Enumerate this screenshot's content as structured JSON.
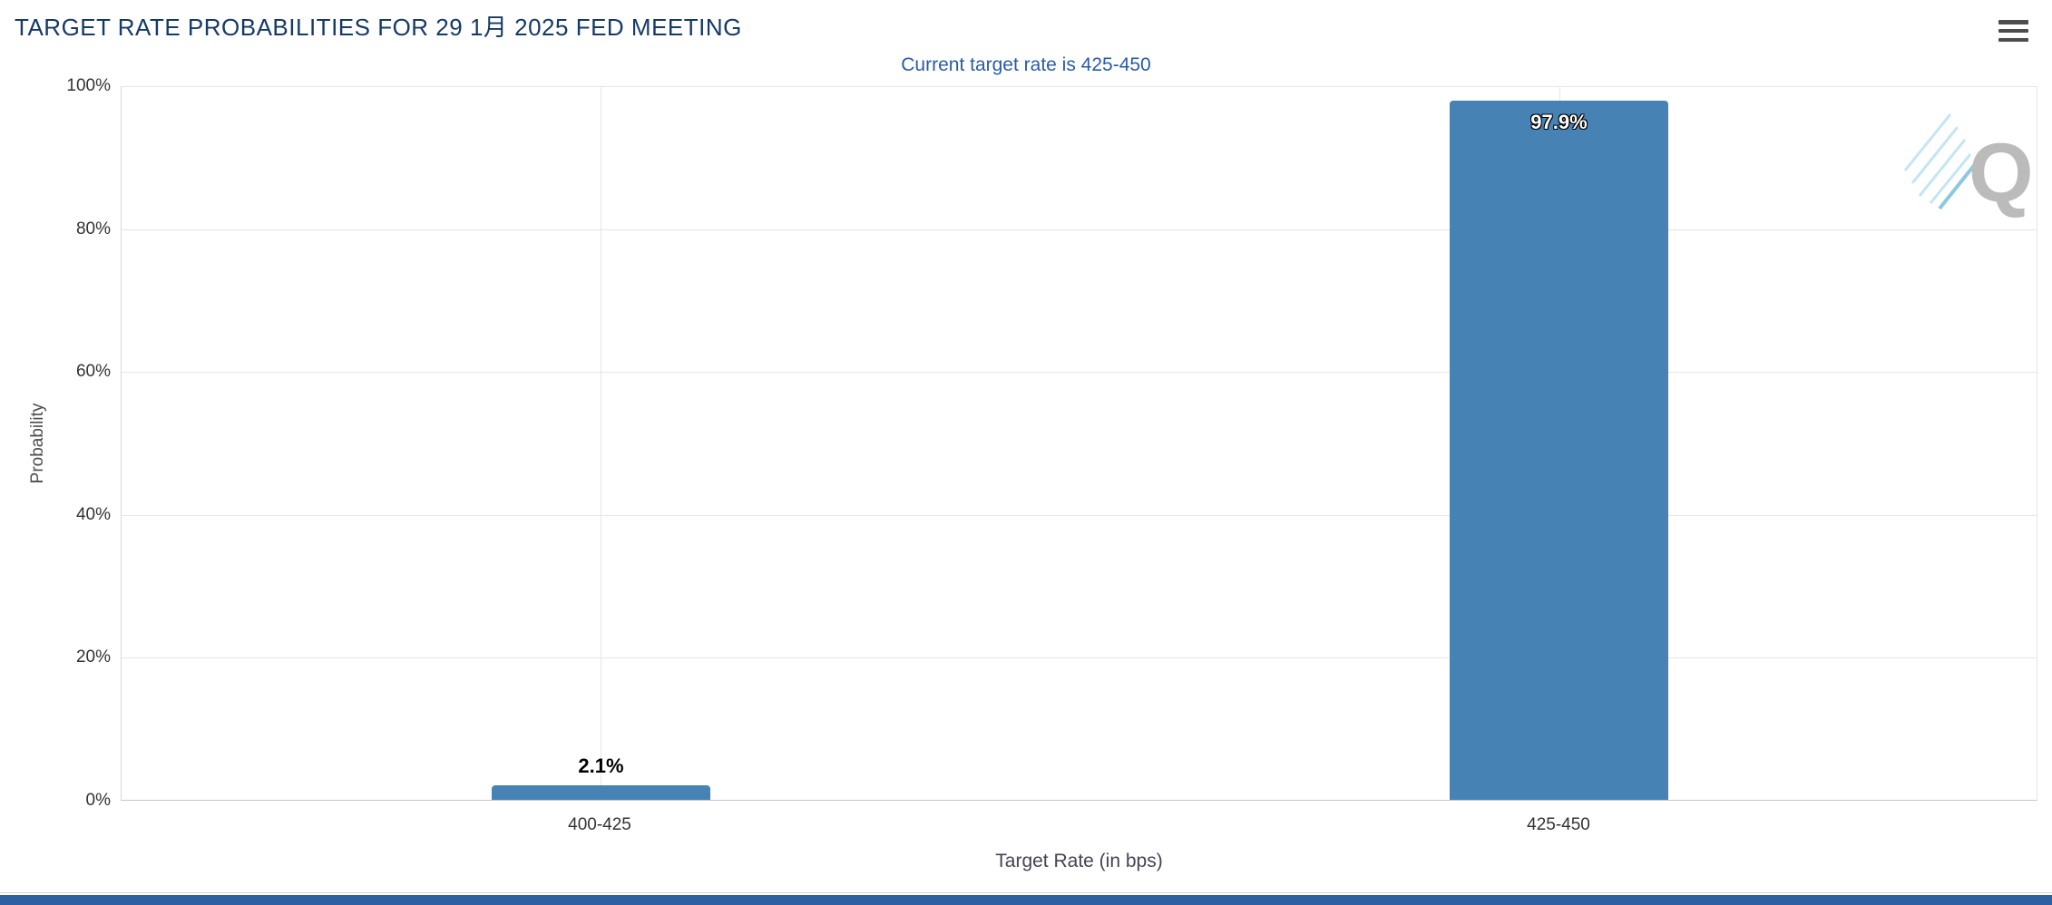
{
  "header": {
    "title": "TARGET RATE PROBABILITIES FOR 29 1月 2025 FED MEETING"
  },
  "chart_data": {
    "type": "bar",
    "title": "TARGET RATE PROBABILITIES FOR 29 1月 2025 FED MEETING",
    "subtitle": "Current target rate is 425-450",
    "categories": [
      "400-425",
      "425-450"
    ],
    "values": [
      2.1,
      97.9
    ],
    "value_labels": [
      "2.1%",
      "97.9%"
    ],
    "xlabel": "Target Rate (in bps)",
    "ylabel": "Probability",
    "ylim": [
      0,
      100
    ],
    "ytick_labels": [
      "0%",
      "20%",
      "40%",
      "60%",
      "80%",
      "100%"
    ],
    "grid": true,
    "legend": "none",
    "bar_color": "#4682b4"
  },
  "watermark": {
    "letter": "Q"
  },
  "colors": {
    "title": "#163a66",
    "subtitle": "#2a5ba6",
    "bar": "#4682b4",
    "footer_bar": "#2d5fa3"
  }
}
